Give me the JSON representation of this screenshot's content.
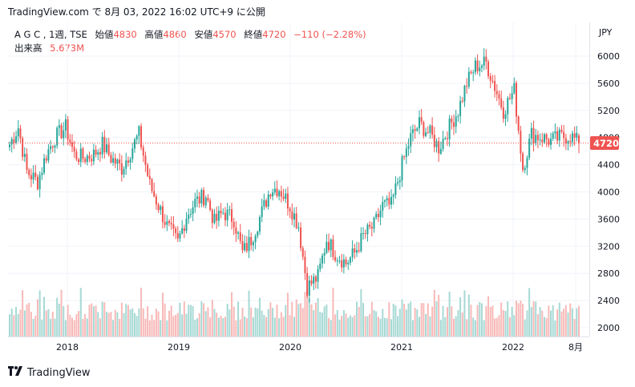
{
  "header": {
    "text": "TradingView.com で 8月 03, 2022 16:02 UTC+9 に公開"
  },
  "legend": {
    "symbol": "A G C , 1週, TSE",
    "open_label": "始値",
    "open": "4830",
    "high_label": "高値",
    "high": "4860",
    "low_label": "安値",
    "low": "4570",
    "close_label": "終値",
    "close": "4720",
    "change": "−110 (−2.28%)",
    "volume_label": "出来高",
    "volume": "5.673M"
  },
  "price_badge": "4720",
  "footer": {
    "brand": "TradingView"
  },
  "colors": {
    "up": "#26a69a",
    "down": "#ef5350",
    "up_vol": "#a6d9d4",
    "down_vol": "#f7b9b8",
    "grid": "#f0f3fa"
  },
  "chart_data": {
    "type": "candlestick",
    "currency": "JPY",
    "y_ticks": [
      2000,
      2400,
      2800,
      3200,
      3600,
      4000,
      4400,
      4800,
      5200,
      5600,
      6000
    ],
    "ylim": [
      1830,
      6280
    ],
    "x_ticks": [
      "2018",
      "2019",
      "2020",
      "2021",
      "2022",
      "8月"
    ],
    "last_close": 4720,
    "x_range": [
      "2017-07",
      "2022-08"
    ],
    "close_anchors": [
      [
        "2017-07",
        4700
      ],
      [
        "2017-08",
        4950
      ],
      [
        "2017-09",
        4300
      ],
      [
        "2017-10",
        4150
      ],
      [
        "2017-11",
        4550
      ],
      [
        "2017-12",
        4800
      ],
      [
        "2018-01",
        4950
      ],
      [
        "2018-02",
        4550
      ],
      [
        "2018-03",
        4500
      ],
      [
        "2018-04",
        4550
      ],
      [
        "2018-05",
        4700
      ],
      [
        "2018-06",
        4500
      ],
      [
        "2018-07",
        4350
      ],
      [
        "2018-08",
        4600
      ],
      [
        "2018-09",
        4850
      ],
      [
        "2018-10",
        4100
      ],
      [
        "2018-11",
        3800
      ],
      [
        "2018-12",
        3500
      ],
      [
        "2019-01",
        3250
      ],
      [
        "2019-02",
        3650
      ],
      [
        "2019-03",
        3850
      ],
      [
        "2019-04",
        3950
      ],
      [
        "2019-05",
        3550
      ],
      [
        "2019-06",
        3700
      ],
      [
        "2019-07",
        3600
      ],
      [
        "2019-08",
        3100
      ],
      [
        "2019-09",
        3300
      ],
      [
        "2019-10",
        3700
      ],
      [
        "2019-11",
        4050
      ],
      [
        "2019-12",
        4050
      ],
      [
        "2020-01",
        3800
      ],
      [
        "2020-02",
        3500
      ],
      [
        "2020-03",
        2600
      ],
      [
        "2020-04",
        2750
      ],
      [
        "2020-05",
        3300
      ],
      [
        "2020-06",
        3100
      ],
      [
        "2020-07",
        2950
      ],
      [
        "2020-08",
        3100
      ],
      [
        "2020-09",
        3350
      ],
      [
        "2020-10",
        3500
      ],
      [
        "2020-11",
        3800
      ],
      [
        "2020-12",
        3800
      ],
      [
        "2021-01",
        4400
      ],
      [
        "2021-02",
        4800
      ],
      [
        "2021-03",
        5000
      ],
      [
        "2021-04",
        4850
      ],
      [
        "2021-05",
        4650
      ],
      [
        "2021-06",
        4900
      ],
      [
        "2021-07",
        5200
      ],
      [
        "2021-08",
        5600
      ],
      [
        "2021-09",
        5850
      ],
      [
        "2021-10",
        5900
      ],
      [
        "2021-11",
        5550
      ],
      [
        "2021-12",
        5200
      ],
      [
        "2022-01",
        5500
      ],
      [
        "2022-02",
        4350
      ],
      [
        "2022-03",
        4850
      ],
      [
        "2022-04",
        4800
      ],
      [
        "2022-05",
        4750
      ],
      [
        "2022-06",
        4800
      ],
      [
        "2022-07",
        4830
      ],
      [
        "2022-08",
        4720
      ]
    ],
    "last_candle": {
      "open": 4830,
      "high": 4860,
      "low": 4570,
      "close": 4720,
      "volume": "5.673M"
    }
  }
}
